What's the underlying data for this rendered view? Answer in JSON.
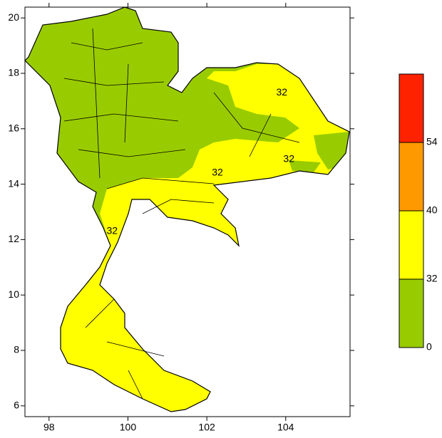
{
  "chart_data": {
    "type": "map",
    "xlim": [
      97.39,
      105.63
    ],
    "ylim": [
      5.61,
      20.39
    ],
    "xticks": [
      98,
      100,
      102,
      104
    ],
    "yticks": [
      6,
      8,
      10,
      12,
      14,
      16,
      18,
      20
    ],
    "colorbar": {
      "levels": [
        0,
        32,
        40,
        54
      ],
      "colors": [
        "#99cc00",
        "#ffff00",
        "#ff9900",
        "#ff2200"
      ]
    },
    "annotations": [
      {
        "text": "32",
        "x": 103.9,
        "y": 17.3
      },
      {
        "text": "32",
        "x": 102.27,
        "y": 14.4
      },
      {
        "text": "32",
        "x": 104.08,
        "y": 14.9
      },
      {
        "text": "32",
        "x": 99.6,
        "y": 12.3
      }
    ]
  }
}
